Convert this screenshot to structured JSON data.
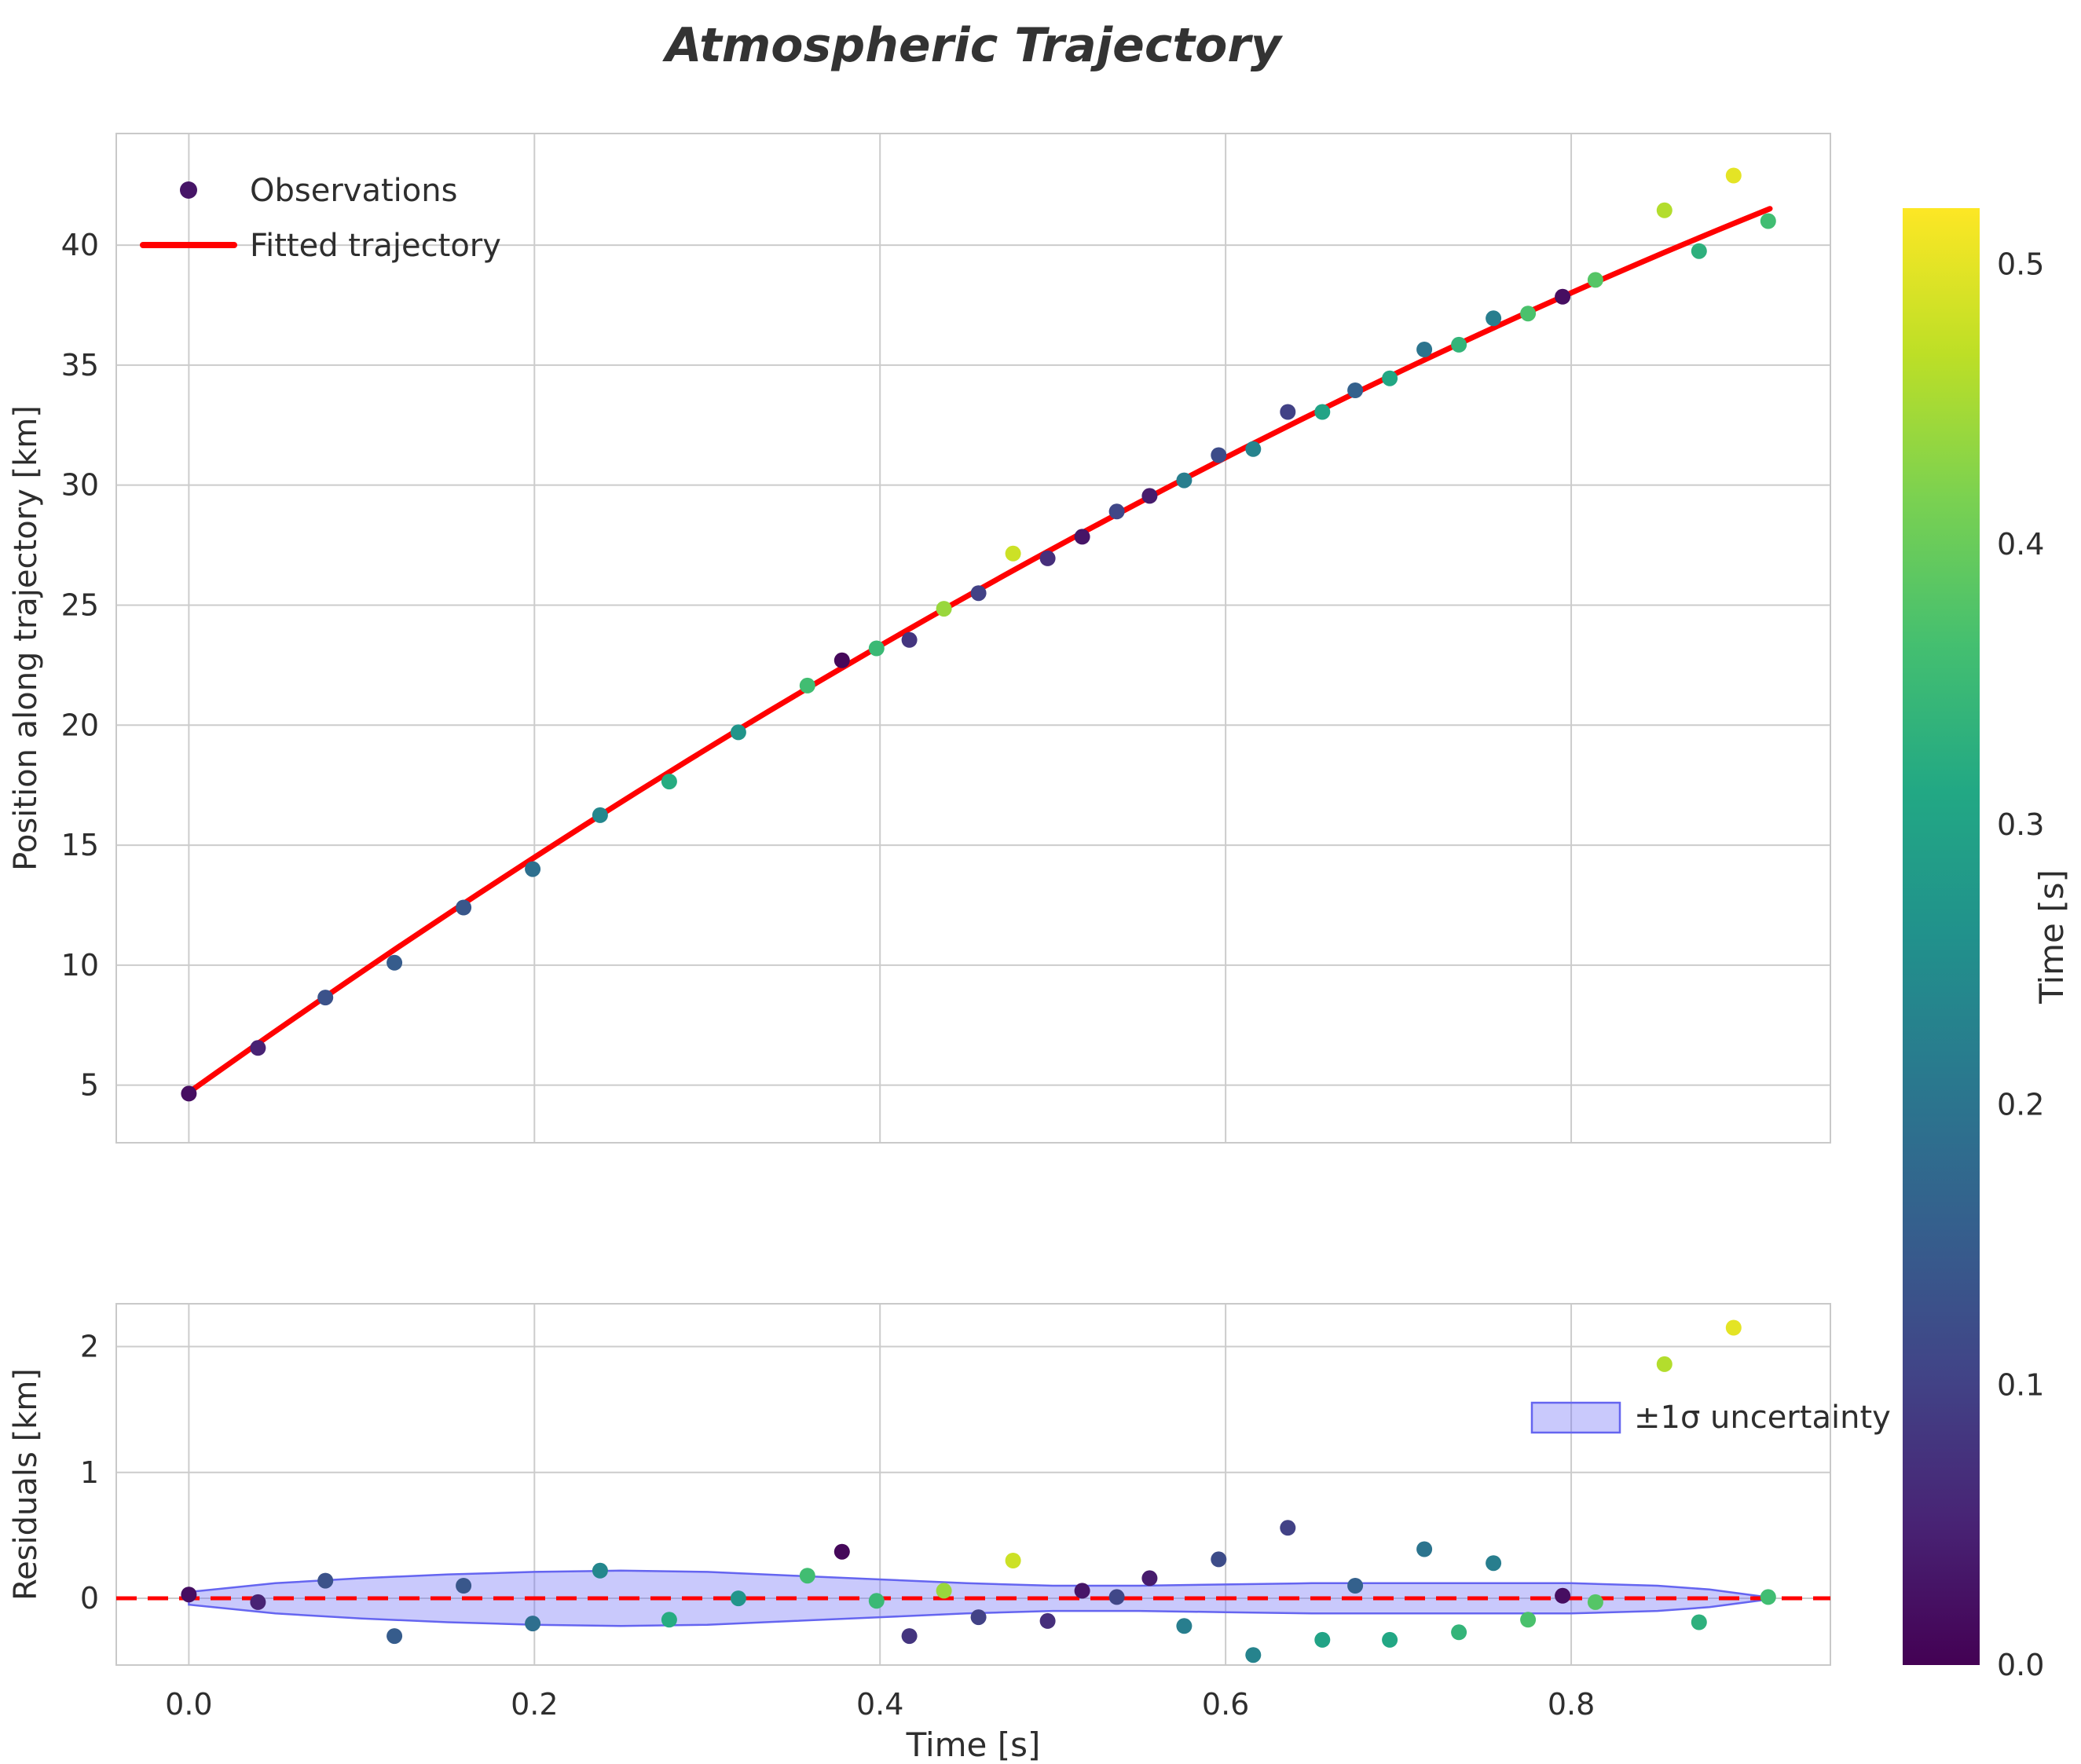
{
  "chart_data": {
    "type": "scatter",
    "title": "Atmospheric Trajectory",
    "style": {
      "grid_color": "#cccccc",
      "spine_color": "#c9c9c9",
      "text_color": "#2e2e2e",
      "title_color": "#333333",
      "fit_color": "#ff0000",
      "band_fill": "rgba(100,100,245,0.35)",
      "band_edge": "#6565f0"
    },
    "colormap": {
      "name": "viridis",
      "stops": [
        [
          0.0,
          "#440154"
        ],
        [
          0.1,
          "#482475"
        ],
        [
          0.2,
          "#414487"
        ],
        [
          0.3,
          "#355f8d"
        ],
        [
          0.4,
          "#2a788e"
        ],
        [
          0.5,
          "#21918c"
        ],
        [
          0.6,
          "#22a884"
        ],
        [
          0.7,
          "#44bf70"
        ],
        [
          0.8,
          "#7ad151"
        ],
        [
          0.9,
          "#bddf26"
        ],
        [
          1.0,
          "#fde725"
        ]
      ]
    },
    "colorbar": {
      "label": "Time [s]",
      "vmin": 0.0,
      "vmax": 0.52,
      "ticks": [
        {
          "v": 0.0,
          "label": "0.0"
        },
        {
          "v": 0.1,
          "label": "0.1"
        },
        {
          "v": 0.2,
          "label": "0.2"
        },
        {
          "v": 0.3,
          "label": "0.3"
        },
        {
          "v": 0.4,
          "label": "0.4"
        },
        {
          "v": 0.5,
          "label": "0.5"
        }
      ]
    },
    "main_panel": {
      "ylabel": "Position along trajectory [km]",
      "xlim": [
        -0.042,
        0.95
      ],
      "ylim": [
        2.6,
        44.65
      ],
      "yticks": [
        {
          "v": 5,
          "label": "5"
        },
        {
          "v": 10,
          "label": "10"
        },
        {
          "v": 15,
          "label": "15"
        },
        {
          "v": 20,
          "label": "20"
        },
        {
          "v": 25,
          "label": "25"
        },
        {
          "v": 30,
          "label": "30"
        },
        {
          "v": 35,
          "label": "35"
        },
        {
          "v": 40,
          "label": "40"
        }
      ],
      "xgrid": [
        0.0,
        0.2,
        0.4,
        0.6,
        0.8
      ],
      "legend": [
        {
          "marker": "dot",
          "label": "Observations",
          "color_value": 0.03
        },
        {
          "marker": "line",
          "label": "Fitted trajectory",
          "color": "#ff0000"
        }
      ],
      "fit_curve": {
        "coeffs": [
          4.7,
          51.4,
          -12.2
        ],
        "t_range": [
          0.0,
          0.915
        ],
        "width": 7
      }
    },
    "residual_panel": {
      "ylabel": "Residuals [km]",
      "xlabel": "Time [s]",
      "ylim": [
        -0.53,
        2.34
      ],
      "yticks": [
        {
          "v": 0,
          "label": "0"
        },
        {
          "v": 1,
          "label": "1"
        },
        {
          "v": 2,
          "label": "2"
        }
      ],
      "xticks": [
        {
          "v": 0.0,
          "label": "0.0"
        },
        {
          "v": 0.2,
          "label": "0.2"
        },
        {
          "v": 0.4,
          "label": "0.4"
        },
        {
          "v": 0.6,
          "label": "0.6"
        },
        {
          "v": 0.8,
          "label": "0.8"
        }
      ],
      "zero_line": {
        "style": "dashed"
      },
      "band": {
        "label": "±1σ uncertainty",
        "x": [
          0.0,
          0.05,
          0.1,
          0.15,
          0.2,
          0.25,
          0.3,
          0.35,
          0.4,
          0.45,
          0.5,
          0.55,
          0.6,
          0.65,
          0.7,
          0.75,
          0.8,
          0.85,
          0.88,
          0.912
        ],
        "halfwidth": [
          0.05,
          0.12,
          0.16,
          0.19,
          0.21,
          0.22,
          0.21,
          0.18,
          0.15,
          0.12,
          0.1,
          0.1,
          0.11,
          0.12,
          0.12,
          0.12,
          0.12,
          0.1,
          0.07,
          0.012
        ]
      }
    },
    "points": [
      {
        "t": 0.0,
        "pos": 4.65,
        "resid": 0.03,
        "c": 0.02
      },
      {
        "t": 0.04,
        "pos": 6.55,
        "resid": -0.03,
        "c": 0.05
      },
      {
        "t": 0.079,
        "pos": 8.65,
        "resid": 0.14,
        "c": 0.13
      },
      {
        "t": 0.119,
        "pos": 10.1,
        "resid": -0.3,
        "c": 0.15
      },
      {
        "t": 0.159,
        "pos": 12.4,
        "resid": 0.1,
        "c": 0.14
      },
      {
        "t": 0.199,
        "pos": 14.0,
        "resid": -0.2,
        "c": 0.19
      },
      {
        "t": 0.238,
        "pos": 16.25,
        "resid": 0.22,
        "c": 0.24
      },
      {
        "t": 0.278,
        "pos": 17.65,
        "resid": -0.17,
        "c": 0.32
      },
      {
        "t": 0.318,
        "pos": 19.7,
        "resid": 0.0,
        "c": 0.27
      },
      {
        "t": 0.358,
        "pos": 21.65,
        "resid": 0.18,
        "c": 0.36
      },
      {
        "t": 0.378,
        "pos": 22.7,
        "resid": 0.37,
        "c": 0.01
      },
      {
        "t": 0.398,
        "pos": 23.2,
        "resid": -0.02,
        "c": 0.35
      },
      {
        "t": 0.417,
        "pos": 23.55,
        "resid": -0.3,
        "c": 0.08
      },
      {
        "t": 0.437,
        "pos": 24.85,
        "resid": 0.06,
        "c": 0.44
      },
      {
        "t": 0.457,
        "pos": 25.5,
        "resid": -0.15,
        "c": 0.1
      },
      {
        "t": 0.477,
        "pos": 27.15,
        "resid": 0.3,
        "c": 0.48
      },
      {
        "t": 0.497,
        "pos": 26.95,
        "resid": -0.18,
        "c": 0.07
      },
      {
        "t": 0.517,
        "pos": 27.85,
        "resid": 0.06,
        "c": 0.03
      },
      {
        "t": 0.537,
        "pos": 28.9,
        "resid": 0.01,
        "c": 0.11
      },
      {
        "t": 0.556,
        "pos": 29.55,
        "resid": 0.16,
        "c": 0.04
      },
      {
        "t": 0.576,
        "pos": 30.2,
        "resid": -0.22,
        "c": 0.22
      },
      {
        "t": 0.596,
        "pos": 31.25,
        "resid": 0.31,
        "c": 0.12
      },
      {
        "t": 0.616,
        "pos": 31.5,
        "resid": -0.45,
        "c": 0.23
      },
      {
        "t": 0.636,
        "pos": 33.05,
        "resid": 0.56,
        "c": 0.1
      },
      {
        "t": 0.656,
        "pos": 33.05,
        "resid": -0.33,
        "c": 0.3
      },
      {
        "t": 0.675,
        "pos": 33.95,
        "resid": 0.1,
        "c": 0.16
      },
      {
        "t": 0.695,
        "pos": 34.45,
        "resid": -0.33,
        "c": 0.31
      },
      {
        "t": 0.715,
        "pos": 35.65,
        "resid": 0.39,
        "c": 0.2
      },
      {
        "t": 0.735,
        "pos": 35.85,
        "resid": -0.27,
        "c": 0.34
      },
      {
        "t": 0.755,
        "pos": 36.95,
        "resid": 0.28,
        "c": 0.22
      },
      {
        "t": 0.775,
        "pos": 37.15,
        "resid": -0.17,
        "c": 0.37
      },
      {
        "t": 0.795,
        "pos": 37.85,
        "resid": 0.02,
        "c": 0.02
      },
      {
        "t": 0.814,
        "pos": 38.55,
        "resid": -0.03,
        "c": 0.38
      },
      {
        "t": 0.854,
        "pos": 41.45,
        "resid": 1.86,
        "c": 0.46
      },
      {
        "t": 0.874,
        "pos": 39.75,
        "resid": -0.19,
        "c": 0.33
      },
      {
        "t": 0.894,
        "pos": 42.9,
        "resid": 2.15,
        "c": 0.5
      },
      {
        "t": 0.914,
        "pos": 41.0,
        "resid": 0.01,
        "c": 0.36
      }
    ]
  }
}
